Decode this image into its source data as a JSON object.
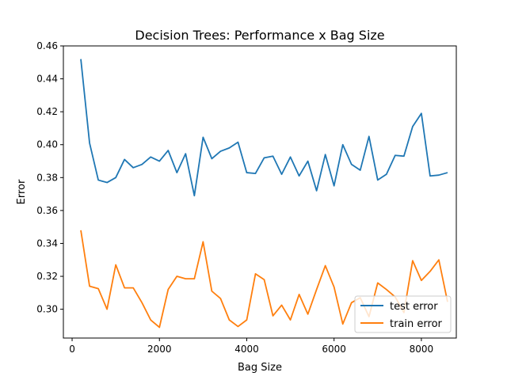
{
  "chart_data": {
    "type": "line",
    "title": "Decision Trees: Performance x Bag Size",
    "xlabel": "Bag Size",
    "ylabel": "Error",
    "xlim": [
      -200,
      8800
    ],
    "ylim": [
      0.2825,
      0.46
    ],
    "xticks": [
      0,
      2000,
      4000,
      6000,
      8000
    ],
    "xtick_labels": [
      "0",
      "2000",
      "4000",
      "6000",
      "8000"
    ],
    "yticks": [
      0.3,
      0.32,
      0.34,
      0.36,
      0.38,
      0.4,
      0.42,
      0.44,
      0.46
    ],
    "ytick_labels": [
      "0.30",
      "0.32",
      "0.34",
      "0.36",
      "0.38",
      "0.40",
      "0.42",
      "0.44",
      "0.46"
    ],
    "grid": false,
    "legend_position": "lower-right",
    "x": [
      200,
      400,
      600,
      800,
      1000,
      1200,
      1400,
      1600,
      1800,
      2000,
      2200,
      2400,
      2600,
      2800,
      3000,
      3200,
      3400,
      3600,
      3800,
      4000,
      4200,
      4400,
      4600,
      4800,
      5000,
      5200,
      5400,
      5600,
      5800,
      6000,
      6200,
      6400,
      6600,
      6800,
      7000,
      7200,
      7400,
      7600,
      7800,
      8000,
      8200,
      8400,
      8600
    ],
    "series": [
      {
        "name": "test error",
        "color": "#1f77b4",
        "values": [
          0.452,
          0.401,
          0.3785,
          0.377,
          0.38,
          0.391,
          0.386,
          0.388,
          0.3925,
          0.39,
          0.3965,
          0.383,
          0.3945,
          0.369,
          0.4045,
          0.3915,
          0.396,
          0.398,
          0.4015,
          0.383,
          0.3825,
          0.392,
          0.393,
          0.382,
          0.3925,
          0.381,
          0.39,
          0.372,
          0.394,
          0.375,
          0.4,
          0.388,
          0.3845,
          0.405,
          0.3785,
          0.382,
          0.3935,
          0.393,
          0.411,
          0.419,
          0.381,
          0.3815,
          0.383
        ]
      },
      {
        "name": "train error",
        "color": "#ff7f0e",
        "values": [
          0.348,
          0.314,
          0.3125,
          0.3,
          0.327,
          0.313,
          0.313,
          0.304,
          0.2935,
          0.289,
          0.312,
          0.32,
          0.3185,
          0.3185,
          0.341,
          0.311,
          0.3065,
          0.2935,
          0.2895,
          0.2935,
          0.3215,
          0.318,
          0.296,
          0.3025,
          0.2935,
          0.309,
          0.297,
          0.312,
          0.3265,
          0.3135,
          0.291,
          0.304,
          0.307,
          0.2955,
          0.316,
          0.312,
          0.3075,
          0.298,
          0.3295,
          0.3175,
          0.323,
          0.33,
          0.3045
        ]
      }
    ]
  }
}
